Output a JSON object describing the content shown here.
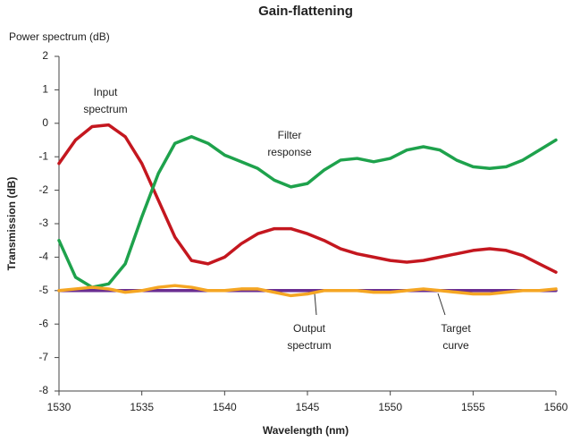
{
  "chart_data": {
    "type": "line",
    "title": "Gain-flattening",
    "subtitle": "Power spectrum (dB)",
    "x_label": "Wavelength (nm)",
    "y_label": "Transmission (dB)",
    "xlim": [
      1530,
      1560
    ],
    "xticks": [
      1530,
      1535,
      1540,
      1545,
      1550,
      1555,
      1560
    ],
    "ylim": [
      -8,
      2
    ],
    "yticks": [
      -8,
      -7,
      -6,
      -5,
      -4,
      -3,
      -2,
      -1,
      0,
      1,
      2
    ],
    "grid": false,
    "annotations": [
      {
        "lines": [
          "Input",
          "spectrum"
        ]
      },
      {
        "lines": [
          "Filter",
          "response"
        ]
      },
      {
        "lines": [
          "Output",
          "spectrum"
        ]
      },
      {
        "lines": [
          "Target",
          "curve"
        ]
      }
    ],
    "series": [
      {
        "color": "#6a2d91",
        "x": [
          1530,
          1560
        ],
        "values": [
          -5,
          -5
        ]
      },
      {
        "color": "#c4171f",
        "x": [
          1530,
          1531,
          1532,
          1533,
          1534,
          1535,
          1536,
          1537,
          1538,
          1539,
          1540,
          1541,
          1542,
          1543,
          1544,
          1545,
          1546,
          1547,
          1548,
          1549,
          1550,
          1551,
          1552,
          1553,
          1554,
          1555,
          1556,
          1557,
          1558,
          1559,
          1560
        ],
        "values": [
          -1.2,
          -0.5,
          -0.1,
          -0.05,
          -0.4,
          -1.2,
          -2.3,
          -3.4,
          -4.1,
          -4.2,
          -4.0,
          -3.6,
          -3.3,
          -3.15,
          -3.15,
          -3.3,
          -3.5,
          -3.75,
          -3.9,
          -4.0,
          -4.1,
          -4.15,
          -4.1,
          -4.0,
          -3.9,
          -3.8,
          -3.75,
          -3.8,
          -3.95,
          -4.2,
          -4.45
        ]
      },
      {
        "color": "#1ea24c",
        "x": [
          1530,
          1531,
          1532,
          1533,
          1534,
          1535,
          1536,
          1537,
          1538,
          1539,
          1540,
          1541,
          1542,
          1543,
          1544,
          1545,
          1546,
          1547,
          1548,
          1549,
          1550,
          1551,
          1552,
          1553,
          1554,
          1555,
          1556,
          1557,
          1558,
          1559,
          1560
        ],
        "values": [
          -3.5,
          -4.6,
          -4.9,
          -4.8,
          -4.2,
          -2.8,
          -1.5,
          -0.6,
          -0.4,
          -0.6,
          -0.95,
          -1.15,
          -1.35,
          -1.7,
          -1.9,
          -1.8,
          -1.4,
          -1.1,
          -1.05,
          -1.15,
          -1.05,
          -0.8,
          -0.7,
          -0.8,
          -1.1,
          -1.3,
          -1.35,
          -1.3,
          -1.1,
          -0.8,
          -0.5
        ]
      },
      {
        "color": "#f5a623",
        "x": [
          1530,
          1531,
          1532,
          1533,
          1534,
          1535,
          1536,
          1537,
          1538,
          1539,
          1540,
          1541,
          1542,
          1543,
          1544,
          1545,
          1546,
          1547,
          1548,
          1549,
          1550,
          1551,
          1552,
          1553,
          1554,
          1555,
          1556,
          1557,
          1558,
          1559,
          1560
        ],
        "values": [
          -5.0,
          -4.95,
          -4.9,
          -4.95,
          -5.05,
          -5.0,
          -4.9,
          -4.85,
          -4.9,
          -5.0,
          -5.0,
          -4.95,
          -4.95,
          -5.05,
          -5.15,
          -5.1,
          -5.0,
          -5.0,
          -5.0,
          -5.05,
          -5.05,
          -5.0,
          -4.95,
          -5.0,
          -5.05,
          -5.1,
          -5.1,
          -5.05,
          -5.0,
          -5.0,
          -4.95
        ]
      }
    ]
  }
}
